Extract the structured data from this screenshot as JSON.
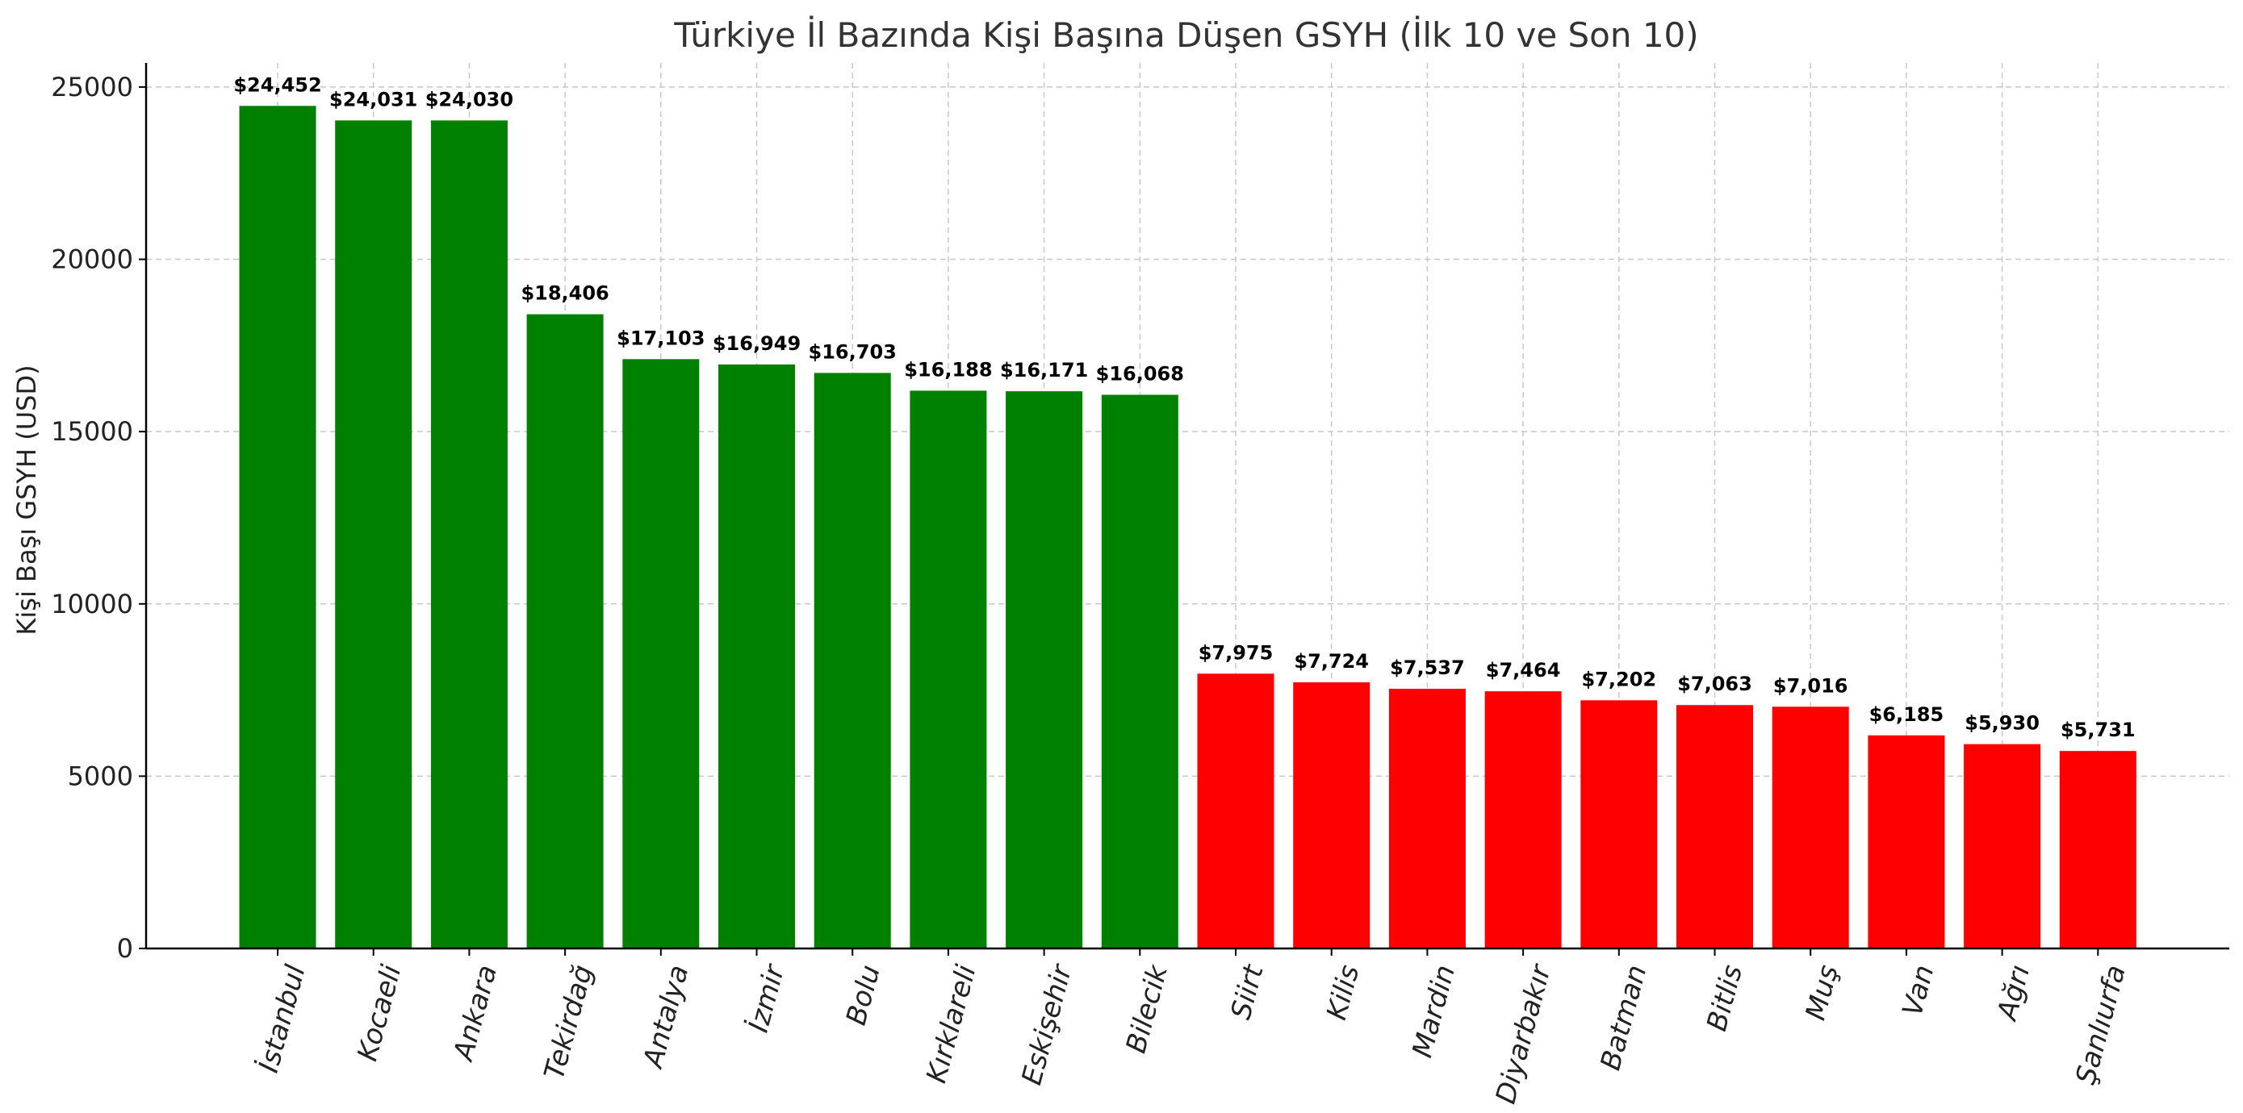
{
  "chart_data": {
    "type": "bar",
    "title": "Türkiye İl Bazında Kişi Başına Düşen GSYH (İlk 10 ve Son 10)",
    "xlabel": "",
    "ylabel": "Kişi Başı GSYH (USD)",
    "ylim": [
      0,
      25700
    ],
    "yticks": [
      0,
      5000,
      10000,
      15000,
      20000,
      25000
    ],
    "ytick_labels": [
      "0",
      "5000",
      "10000",
      "15000",
      "20000",
      "25000"
    ],
    "grid": true,
    "categories": [
      "İstanbul",
      "Kocaeli",
      "Ankara",
      "Tekirdağ",
      "Antalya",
      "İzmir",
      "Bolu",
      "Kırklareli",
      "Eskişehir",
      "Bilecik",
      "Siirt",
      "Kilis",
      "Mardin",
      "Diyarbakır",
      "Batman",
      "Bitlis",
      "Muş",
      "Van",
      "Ağrı",
      "Şanlıurfa"
    ],
    "values": [
      24452,
      24031,
      24030,
      18406,
      17103,
      16949,
      16703,
      16188,
      16171,
      16068,
      7975,
      7724,
      7537,
      7464,
      7202,
      7063,
      7016,
      6185,
      5930,
      5731
    ],
    "value_labels": [
      "$24,452",
      "$24,031",
      "$24,030",
      "$18,406",
      "$17,103",
      "$16,949",
      "$16,703",
      "$16,188",
      "$16,171",
      "$16,068",
      "$7,975",
      "$7,724",
      "$7,537",
      "$7,464",
      "$7,202",
      "$7,063",
      "$7,016",
      "$6,185",
      "$5,930",
      "$5,731"
    ],
    "bar_colors": [
      "#008000",
      "#008000",
      "#008000",
      "#008000",
      "#008000",
      "#008000",
      "#008000",
      "#008000",
      "#008000",
      "#008000",
      "#ff0000",
      "#ff0000",
      "#ff0000",
      "#ff0000",
      "#ff0000",
      "#ff0000",
      "#ff0000",
      "#ff0000",
      "#ff0000",
      "#ff0000"
    ]
  }
}
